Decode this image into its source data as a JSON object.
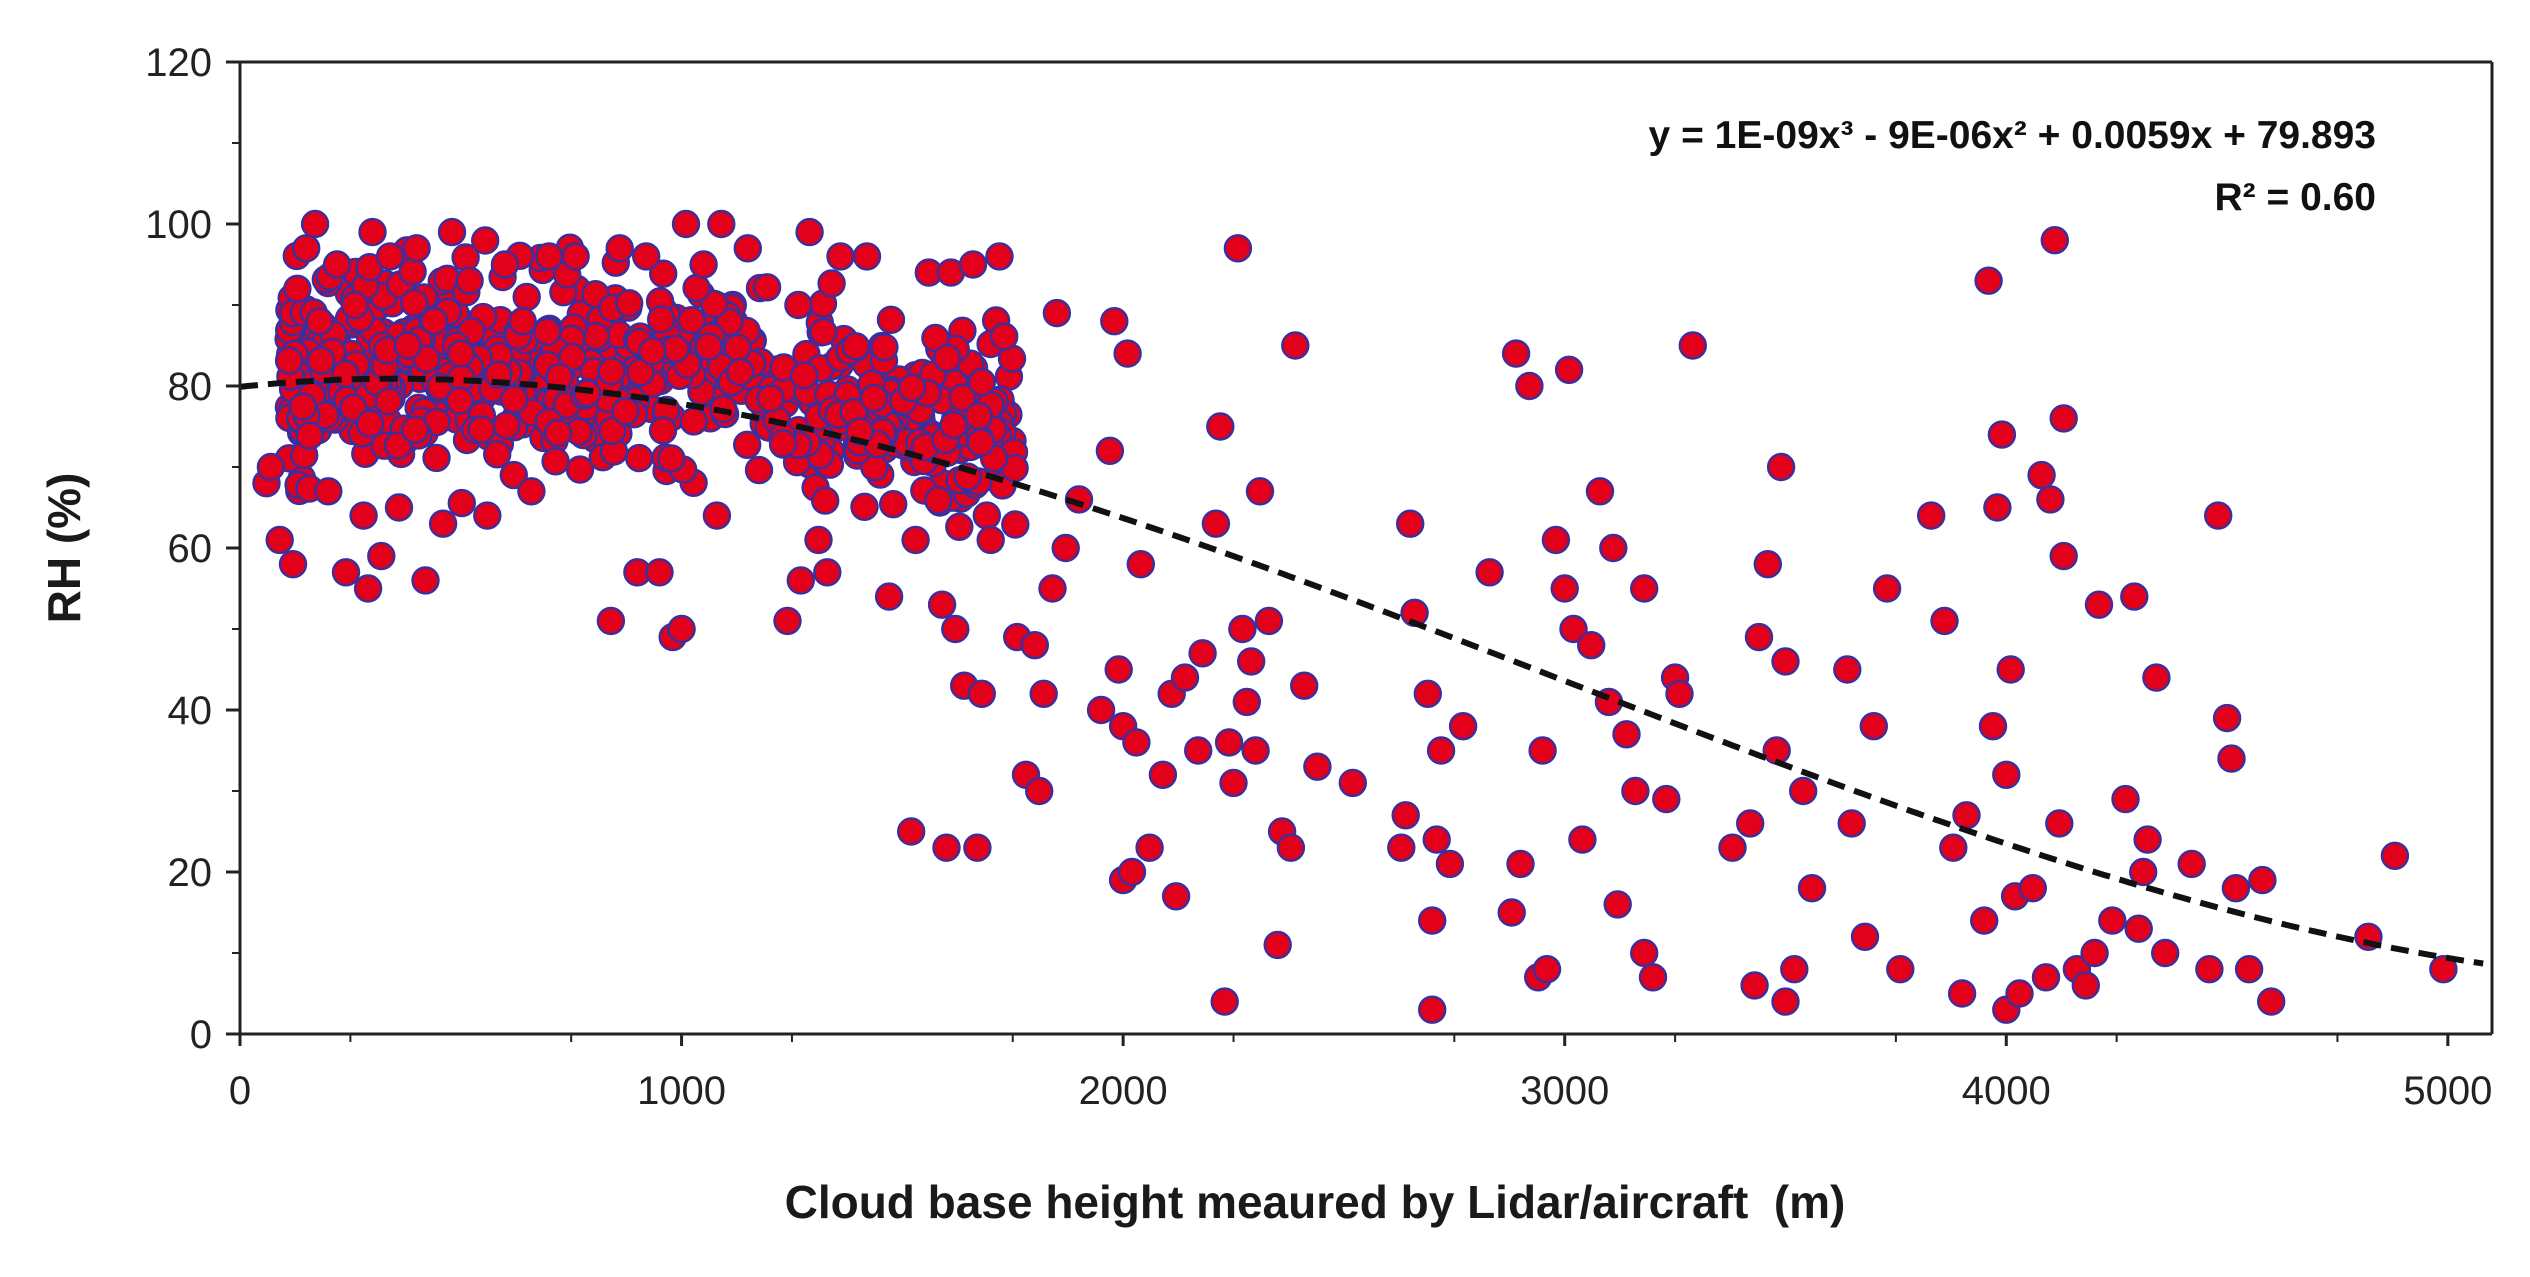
{
  "chart_data": {
    "type": "scatter",
    "xlabel": "Cloud base height meaured by Lidar/aircraft  (m)",
    "ylabel": "RH (%)",
    "xlim": [
      0,
      5100
    ],
    "ylim": [
      0,
      120
    ],
    "x_ticks": [
      0,
      1000,
      2000,
      3000,
      4000,
      5000
    ],
    "y_ticks": [
      0,
      20,
      40,
      60,
      80,
      100,
      120
    ],
    "x_tick_labels": [
      "0",
      "1000",
      "2000",
      "3000",
      "4000",
      "5000"
    ],
    "y_tick_labels": [
      "0",
      "20",
      "40",
      "60",
      "80",
      "100",
      "120"
    ],
    "grid": false,
    "legend": "none",
    "marker": {
      "fill": "#e3001b",
      "edge": "#3a2f9e",
      "shape": "circle"
    },
    "trendline": {
      "type": "polynomial-3",
      "color": "#111111",
      "style": "dashed",
      "coefficients": {
        "a3": 1e-09,
        "a2": -9e-06,
        "a1": 0.0059,
        "a0": 79.893
      },
      "x_range": [
        0,
        5080
      ]
    },
    "annotations": {
      "equation": "y = 1E-09x³ - 9E-06x² + 0.0059x + 79.893",
      "r_squared": "R² = 0.60"
    },
    "cluster_note": "dense cloud of points between x=100-1800 m, y=60-100 % (approx. 700 points)",
    "series": [
      {
        "points": [
          [
            60,
            68
          ],
          [
            70,
            70
          ],
          [
            90,
            61
          ],
          [
            120,
            58
          ],
          [
            130,
            92
          ],
          [
            150,
            97
          ],
          [
            170,
            100
          ],
          [
            180,
            88
          ],
          [
            200,
            67
          ],
          [
            220,
            95
          ],
          [
            240,
            57
          ],
          [
            260,
            90
          ],
          [
            280,
            64
          ],
          [
            290,
            55
          ],
          [
            300,
            99
          ],
          [
            320,
            59
          ],
          [
            340,
            96
          ],
          [
            360,
            65
          ],
          [
            380,
            85
          ],
          [
            400,
            97
          ],
          [
            420,
            56
          ],
          [
            440,
            88
          ],
          [
            460,
            63
          ],
          [
            480,
            99
          ],
          [
            500,
            84
          ],
          [
            520,
            93
          ],
          [
            560,
            64
          ],
          [
            600,
            95
          ],
          [
            620,
            69
          ],
          [
            640,
            88
          ],
          [
            660,
            67
          ],
          [
            700,
            96
          ],
          [
            760,
            96
          ],
          [
            840,
            51
          ],
          [
            860,
            97
          ],
          [
            900,
            57
          ],
          [
            920,
            96
          ],
          [
            950,
            57
          ],
          [
            980,
            49
          ],
          [
            1000,
            50
          ],
          [
            1010,
            100
          ],
          [
            1050,
            95
          ],
          [
            1080,
            64
          ],
          [
            1090,
            100
          ],
          [
            1150,
            97
          ],
          [
            1240,
            51
          ],
          [
            1270,
            56
          ],
          [
            1290,
            99
          ],
          [
            1310,
            61
          ],
          [
            1330,
            57
          ],
          [
            1360,
            96
          ],
          [
            1420,
            96
          ],
          [
            1470,
            54
          ],
          [
            1520,
            25
          ],
          [
            1530,
            61
          ],
          [
            1560,
            94
          ],
          [
            1590,
            53
          ],
          [
            1600,
            23
          ],
          [
            1610,
            94
          ],
          [
            1620,
            50
          ],
          [
            1640,
            43
          ],
          [
            1660,
            95
          ],
          [
            1670,
            23
          ],
          [
            1680,
            42
          ],
          [
            1700,
            61
          ],
          [
            1720,
            96
          ],
          [
            1760,
            49
          ],
          [
            1780,
            32
          ],
          [
            1800,
            48
          ],
          [
            1810,
            30
          ],
          [
            1820,
            42
          ],
          [
            1840,
            55
          ],
          [
            1850,
            89
          ],
          [
            1870,
            60
          ],
          [
            1900,
            66
          ],
          [
            1950,
            40
          ],
          [
            1970,
            72
          ],
          [
            1980,
            88
          ],
          [
            1990,
            45
          ],
          [
            2000,
            38
          ],
          [
            2000,
            19
          ],
          [
            2010,
            84
          ],
          [
            2020,
            20
          ],
          [
            2030,
            36
          ],
          [
            2040,
            58
          ],
          [
            2060,
            23
          ],
          [
            2090,
            32
          ],
          [
            2110,
            42
          ],
          [
            2120,
            17
          ],
          [
            2140,
            44
          ],
          [
            2170,
            35
          ],
          [
            2180,
            47
          ],
          [
            2210,
            63
          ],
          [
            2220,
            75
          ],
          [
            2230,
            4
          ],
          [
            2240,
            36
          ],
          [
            2250,
            31
          ],
          [
            2260,
            97
          ],
          [
            2270,
            50
          ],
          [
            2280,
            41
          ],
          [
            2290,
            46
          ],
          [
            2300,
            35
          ],
          [
            2310,
            67
          ],
          [
            2330,
            51
          ],
          [
            2350,
            11
          ],
          [
            2360,
            25
          ],
          [
            2380,
            23
          ],
          [
            2390,
            85
          ],
          [
            2410,
            43
          ],
          [
            2440,
            33
          ],
          [
            2520,
            31
          ],
          [
            2630,
            23
          ],
          [
            2640,
            27
          ],
          [
            2650,
            63
          ],
          [
            2660,
            52
          ],
          [
            2690,
            42
          ],
          [
            2700,
            3
          ],
          [
            2700,
            14
          ],
          [
            2710,
            24
          ],
          [
            2720,
            35
          ],
          [
            2740,
            21
          ],
          [
            2770,
            38
          ],
          [
            2830,
            57
          ],
          [
            2880,
            15
          ],
          [
            2890,
            84
          ],
          [
            2900,
            21
          ],
          [
            2920,
            80
          ],
          [
            2940,
            7
          ],
          [
            2950,
            35
          ],
          [
            2960,
            8
          ],
          [
            2980,
            61
          ],
          [
            3000,
            55
          ],
          [
            3010,
            82
          ],
          [
            3020,
            50
          ],
          [
            3040,
            24
          ],
          [
            3060,
            48
          ],
          [
            3080,
            67
          ],
          [
            3100,
            41
          ],
          [
            3110,
            60
          ],
          [
            3120,
            16
          ],
          [
            3140,
            37
          ],
          [
            3160,
            30
          ],
          [
            3180,
            55
          ],
          [
            3180,
            10
          ],
          [
            3200,
            7
          ],
          [
            3230,
            29
          ],
          [
            3250,
            44
          ],
          [
            3260,
            42
          ],
          [
            3290,
            85
          ],
          [
            3380,
            23
          ],
          [
            3420,
            26
          ],
          [
            3430,
            6
          ],
          [
            3440,
            49
          ],
          [
            3460,
            58
          ],
          [
            3480,
            35
          ],
          [
            3490,
            70
          ],
          [
            3500,
            4
          ],
          [
            3500,
            46
          ],
          [
            3520,
            8
          ],
          [
            3540,
            30
          ],
          [
            3560,
            18
          ],
          [
            3640,
            45
          ],
          [
            3650,
            26
          ],
          [
            3680,
            12
          ],
          [
            3700,
            38
          ],
          [
            3730,
            55
          ],
          [
            3760,
            8
          ],
          [
            3830,
            64
          ],
          [
            3860,
            51
          ],
          [
            3880,
            23
          ],
          [
            3900,
            5
          ],
          [
            3910,
            27
          ],
          [
            3950,
            14
          ],
          [
            3960,
            93
          ],
          [
            3970,
            38
          ],
          [
            3980,
            65
          ],
          [
            3990,
            74
          ],
          [
            4000,
            32
          ],
          [
            4000,
            3
          ],
          [
            4010,
            45
          ],
          [
            4020,
            17
          ],
          [
            4030,
            5
          ],
          [
            4060,
            18
          ],
          [
            4080,
            69
          ],
          [
            4090,
            7
          ],
          [
            4100,
            66
          ],
          [
            4110,
            98
          ],
          [
            4120,
            26
          ],
          [
            4130,
            76
          ],
          [
            4130,
            59
          ],
          [
            4160,
            8
          ],
          [
            4180,
            6
          ],
          [
            4200,
            10
          ],
          [
            4210,
            53
          ],
          [
            4240,
            14
          ],
          [
            4270,
            29
          ],
          [
            4290,
            54
          ],
          [
            4300,
            13
          ],
          [
            4310,
            20
          ],
          [
            4320,
            24
          ],
          [
            4340,
            44
          ],
          [
            4360,
            10
          ],
          [
            4420,
            21
          ],
          [
            4460,
            8
          ],
          [
            4480,
            64
          ],
          [
            4500,
            39
          ],
          [
            4510,
            34
          ],
          [
            4520,
            18
          ],
          [
            4550,
            8
          ],
          [
            4580,
            19
          ],
          [
            4600,
            4
          ],
          [
            4820,
            12
          ],
          [
            4880,
            22
          ],
          [
            4990,
            8
          ]
        ]
      }
    ]
  }
}
